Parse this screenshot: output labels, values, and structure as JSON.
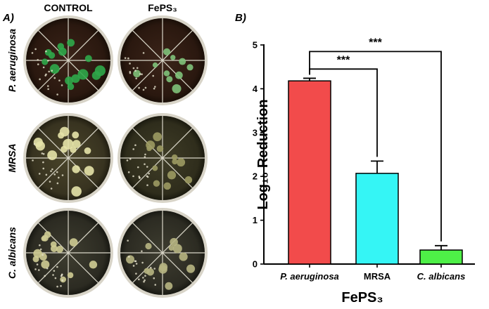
{
  "panel_a": {
    "label": "A)",
    "columns": [
      "CONTROL",
      "FePS₃"
    ],
    "rows": [
      "P. aeruginosa",
      "MRSA",
      "C. albicans"
    ]
  },
  "panel_b": {
    "label": "B)"
  },
  "chart_data": {
    "type": "bar",
    "title": "",
    "categories": [
      "P. aeruginosa",
      "MRSA",
      "C. albicans"
    ],
    "category_italic": [
      true,
      false,
      true
    ],
    "values": [
      4.18,
      2.07,
      0.32
    ],
    "errors": [
      0.06,
      0.28,
      0.1
    ],
    "colors": [
      "#f24b4b",
      "#35f5f5",
      "#4ef047"
    ],
    "xlabel": "FePS₃",
    "ylabel": "Log₁₀ Reduction",
    "ylim": [
      0,
      5
    ],
    "yticks": [
      0,
      1,
      2,
      3,
      4,
      5
    ],
    "grid": false,
    "significance": [
      {
        "from": 0,
        "to": 1,
        "label": "***"
      },
      {
        "from": 0,
        "to": 2,
        "label": "***"
      }
    ]
  }
}
